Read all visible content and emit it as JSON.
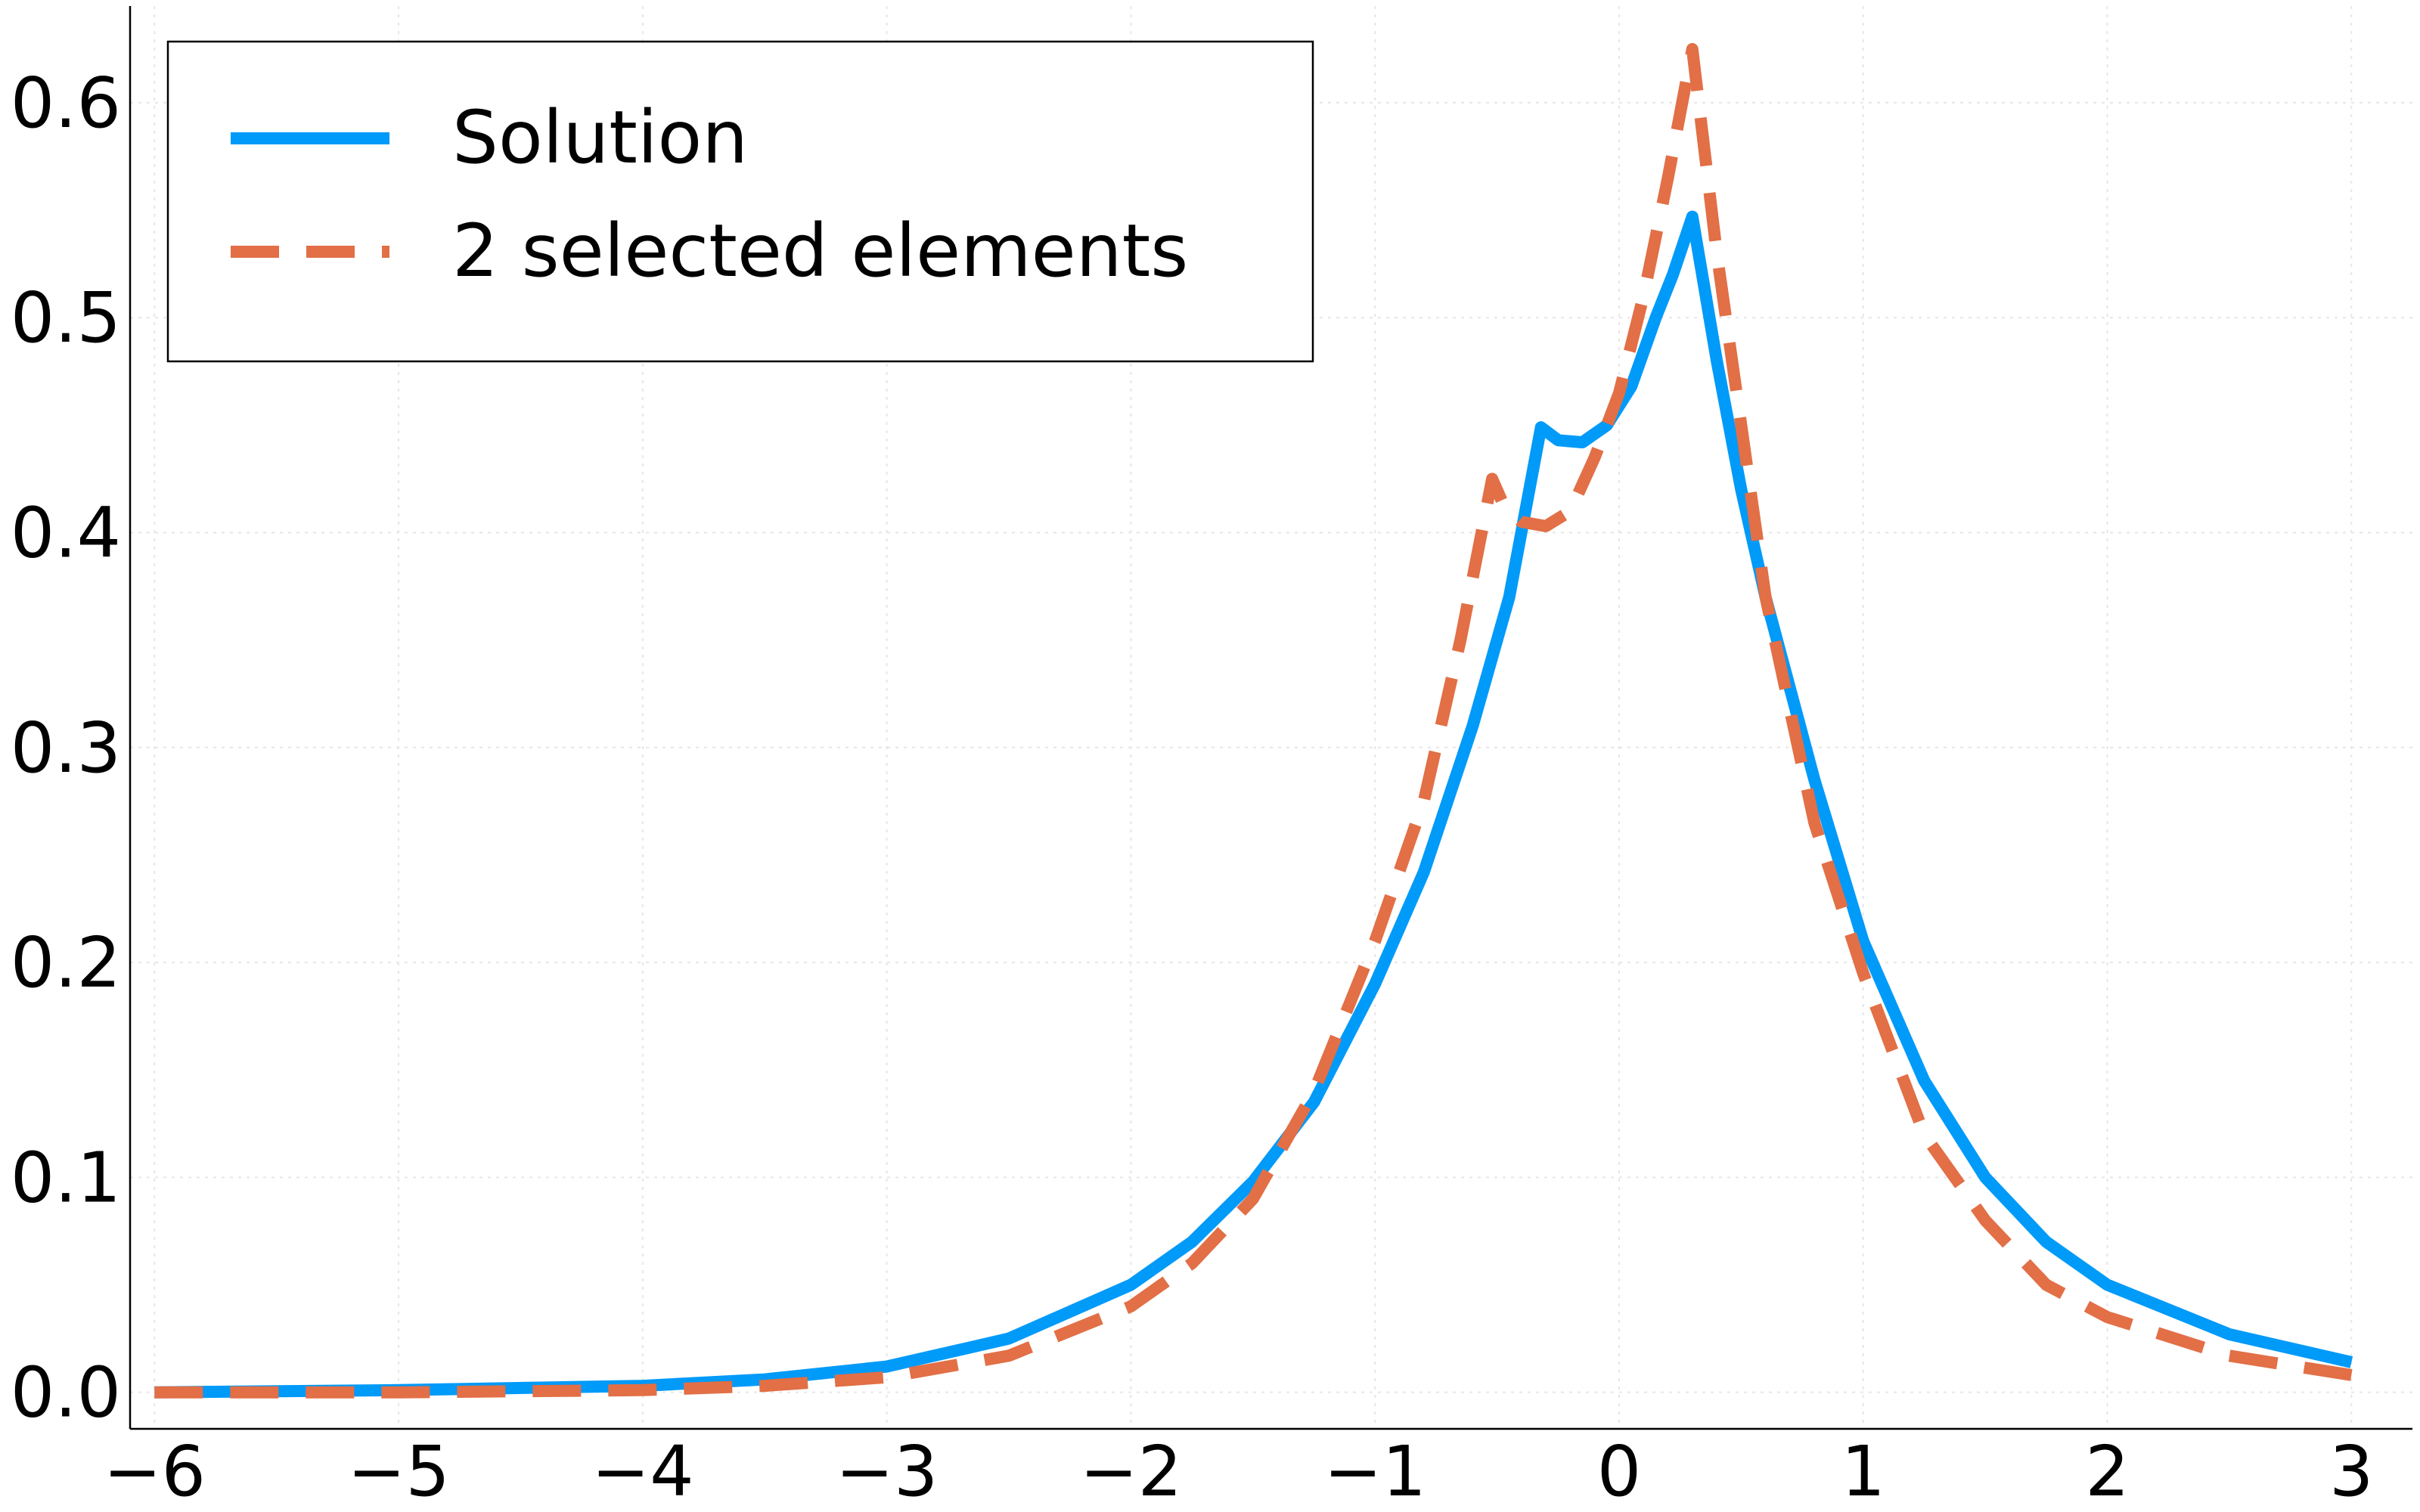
{
  "chart_data": {
    "type": "line",
    "title": "",
    "xlabel": "",
    "ylabel": "",
    "xlim": [
      -6.1,
      3.25
    ],
    "ylim": [
      -0.017,
      0.645
    ],
    "xticks": [
      -6,
      -5,
      -4,
      -3,
      -2,
      -1,
      0,
      1,
      2,
      3
    ],
    "xtick_labels": [
      "−6",
      "−5",
      "−4",
      "−3",
      "−2",
      "−1",
      "0",
      "1",
      "2",
      "3"
    ],
    "yticks": [
      0.0,
      0.1,
      0.2,
      0.3,
      0.4,
      0.5,
      0.6
    ],
    "ytick_labels": [
      "0.0",
      "0.1",
      "0.2",
      "0.3",
      "0.4",
      "0.5",
      "0.6"
    ],
    "grid": true,
    "legend": {
      "position": "top-left"
    },
    "series": [
      {
        "name": "Solution",
        "color": "#009AF9",
        "style": "solid",
        "x": [
          -6.0,
          -5.0,
          -4.0,
          -3.5,
          -3.0,
          -2.5,
          -2.0,
          -1.75,
          -1.5,
          -1.25,
          -1.0,
          -0.8,
          -0.6,
          -0.45,
          -0.32,
          -0.25,
          -0.15,
          -0.05,
          0.05,
          0.15,
          0.22,
          0.3,
          0.4,
          0.5,
          0.6,
          0.8,
          1.0,
          1.25,
          1.5,
          1.75,
          2.0,
          2.5,
          3.0
        ],
        "y": [
          0.0,
          0.001,
          0.003,
          0.006,
          0.012,
          0.025,
          0.05,
          0.07,
          0.098,
          0.135,
          0.19,
          0.242,
          0.31,
          0.37,
          0.449,
          0.443,
          0.442,
          0.45,
          0.468,
          0.5,
          0.52,
          0.547,
          0.48,
          0.42,
          0.37,
          0.285,
          0.21,
          0.145,
          0.1,
          0.07,
          0.05,
          0.027,
          0.014
        ]
      },
      {
        "name": "2 selected elements",
        "color": "#E26F46",
        "style": "dashed",
        "x": [
          -6.0,
          -5.0,
          -4.0,
          -3.5,
          -3.0,
          -2.5,
          -2.0,
          -1.75,
          -1.5,
          -1.25,
          -1.0,
          -0.8,
          -0.65,
          -0.52,
          -0.47,
          -0.4,
          -0.3,
          -0.2,
          -0.1,
          0.0,
          0.1,
          0.2,
          0.3,
          0.4,
          0.5,
          0.6,
          0.8,
          1.0,
          1.25,
          1.5,
          1.75,
          2.0,
          2.5,
          3.0
        ],
        "y": [
          0.0,
          0.0,
          0.001,
          0.003,
          0.007,
          0.017,
          0.04,
          0.06,
          0.09,
          0.14,
          0.21,
          0.275,
          0.35,
          0.425,
          0.412,
          0.405,
          0.403,
          0.41,
          0.435,
          0.465,
          0.51,
          0.565,
          0.625,
          0.53,
          0.45,
          0.37,
          0.265,
          0.195,
          0.12,
          0.08,
          0.05,
          0.035,
          0.017,
          0.008
        ]
      }
    ]
  }
}
